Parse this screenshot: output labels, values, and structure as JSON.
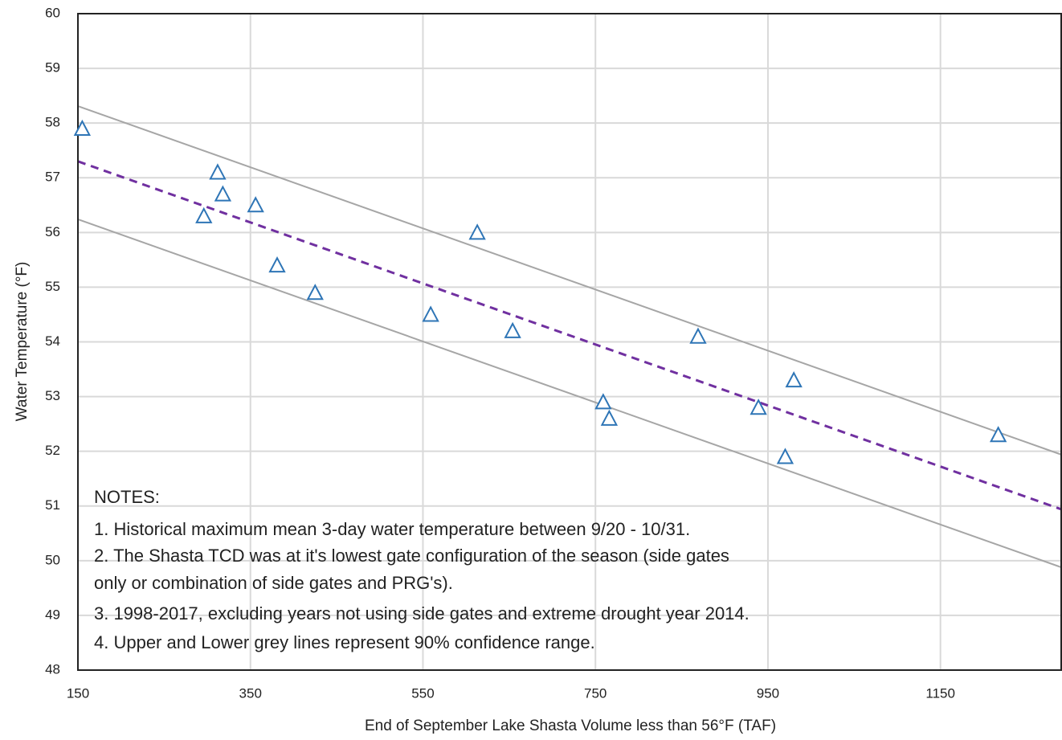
{
  "chart_data": {
    "type": "scatter",
    "x_label": "End of September Lake Shasta Volume less than 56°F (TAF)",
    "y_label": "Water Temperature (°F)",
    "xlim": [
      150,
      1290
    ],
    "xticks": [
      150,
      350,
      550,
      750,
      950,
      1150
    ],
    "ylim": [
      48,
      60
    ],
    "yticks": [
      48,
      49,
      50,
      51,
      52,
      53,
      54,
      55,
      56,
      57,
      58,
      59,
      60
    ],
    "grid": true,
    "series": [
      {
        "mode": "markers",
        "color": "#2e75b6",
        "x": [
          155,
          312,
          318,
          296,
          356,
          381,
          425,
          559,
          613,
          654,
          759,
          766,
          869,
          939,
          980,
          970,
          1217
        ],
        "values": [
          57.9,
          57.1,
          56.7,
          56.3,
          56.5,
          55.4,
          54.9,
          54.5,
          56.0,
          54.2,
          52.9,
          52.6,
          54.1,
          52.8,
          53.3,
          51.9,
          52.3
        ]
      },
      {
        "mode": "line",
        "dash": true,
        "color": "#7030a0",
        "x": [
          150,
          1290
        ],
        "values": [
          57.3,
          50.94
        ]
      },
      {
        "mode": "line",
        "dash": false,
        "color": "#a6a6a6",
        "x": [
          150,
          1290
        ],
        "values": [
          58.31,
          51.94
        ]
      },
      {
        "mode": "line",
        "dash": false,
        "color": "#a6a6a6",
        "x": [
          150,
          1290
        ],
        "values": [
          56.24,
          49.88
        ]
      }
    ],
    "notes": [
      "NOTES:",
      "1. Historical maximum mean 3-day water temperature between 9/20 - 10/31.",
      "2. The Shasta TCD was at it's lowest gate configuration of the season (side gates",
      "only or combination of side gates and PRG's).",
      "3. 1998-2017, excluding years not using side gates and extreme drought year 2014.",
      "4. Upper and Lower grey lines represent 90% confidence range."
    ]
  }
}
